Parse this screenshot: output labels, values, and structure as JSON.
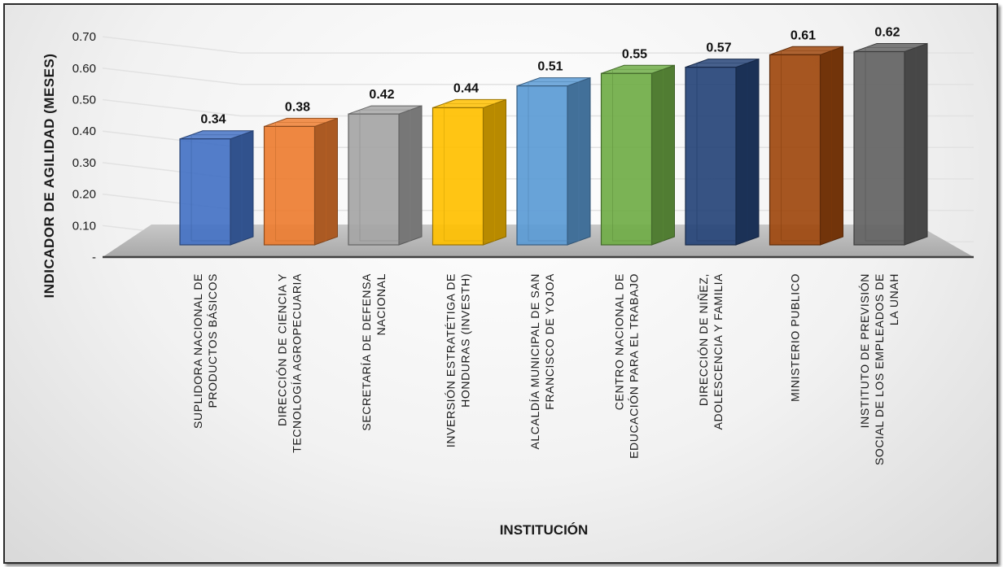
{
  "chart_data": {
    "type": "bar",
    "style": "3d-column",
    "title": "",
    "xlabel": "INSTITUCIÓN",
    "ylabel": "INDICADOR DE AGILIDAD (MESES)",
    "ylim": [
      0,
      0.7
    ],
    "yticks": [
      "-",
      "0.10",
      "0.20",
      "0.30",
      "0.40",
      "0.50",
      "0.60",
      "0.70"
    ],
    "grid": true,
    "legend": "none",
    "categories": [
      [
        "SUPLIDORA NACIONAL DE",
        "PRODUCTOS BÁSICOS"
      ],
      [
        "DIRECCIÓN DE CIENCIA Y",
        "TECNOLOGÍA AGROPECUARIA"
      ],
      [
        "SECRETARÍA DE DEFENSA",
        "NACIONAL"
      ],
      [
        "INVERSIÓN ESTRATÉTIGA DE",
        "HONDURAS (INVESTH)"
      ],
      [
        "ALCALDÍA MUNICIPAL DE SAN",
        "FRANCISCO DE YOJOA"
      ],
      [
        "CENTRO NACIONAL DE",
        "EDUCACIÓN PARA EL TRABAJO"
      ],
      [
        "DIRECCIÓN DE NIÑEZ,",
        "ADOLESCENCIA Y FAMILIA"
      ],
      [
        "MINISTERIO PUBLICO"
      ],
      [
        "INSTITUTO DE PREVISIÓN",
        "SOCIAL DE LOS EMPLEADOS DE",
        "LA UNAH"
      ]
    ],
    "values": [
      0.34,
      0.38,
      0.42,
      0.44,
      0.51,
      0.55,
      0.57,
      0.61,
      0.62
    ],
    "value_labels": [
      "0.34",
      "0.38",
      "0.42",
      "0.44",
      "0.51",
      "0.55",
      "0.57",
      "0.61",
      "0.62"
    ],
    "colors": [
      "#4472C4",
      "#ED7D31",
      "#A5A5A5",
      "#FFC000",
      "#5B9BD5",
      "#70AD47",
      "#264478",
      "#9E480E",
      "#636363"
    ]
  }
}
